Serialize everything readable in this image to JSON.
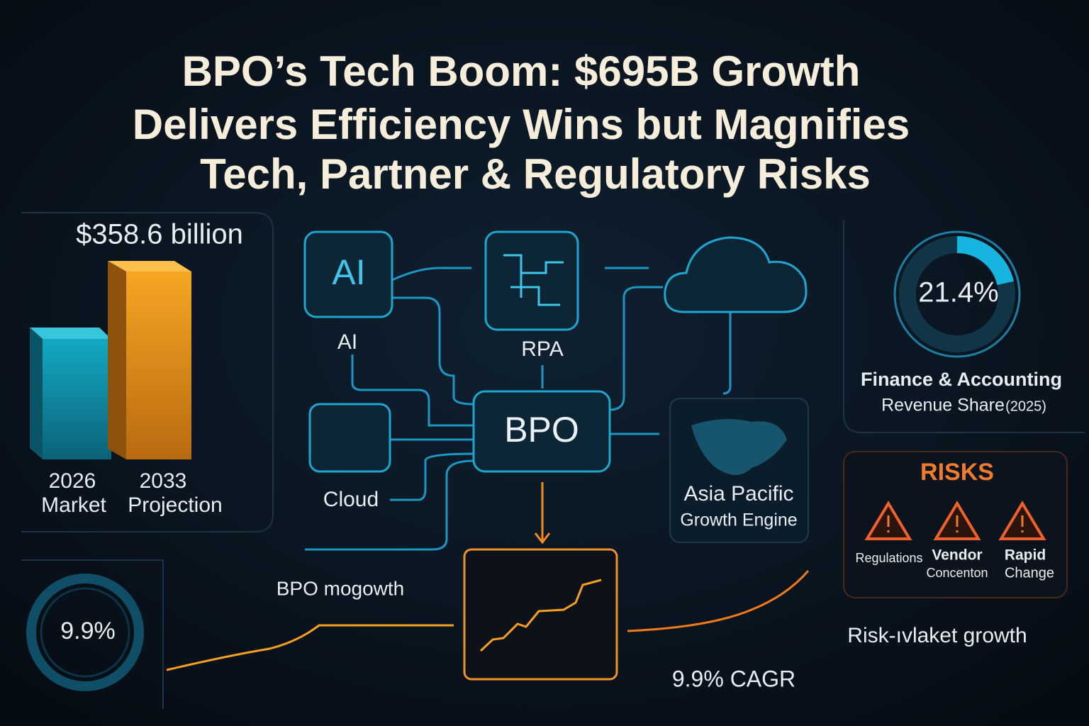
{
  "header": {
    "title_lines": [
      "BPO’s Tech Boom: $695B Growth",
      "Delivers Efficiency Wins but Magnifies",
      "Tech, Partner & Regulatory Risks"
    ]
  },
  "market": {
    "amount": "$358.6 billion",
    "bars": [
      {
        "year": "2026",
        "label": "Market"
      },
      {
        "year": "2033",
        "label": "Projection"
      }
    ]
  },
  "flow": {
    "ai_icon": "AI",
    "ai": "AI",
    "rpa": "RPA",
    "cloud": "Cloud",
    "bpo": "BPO",
    "asia": [
      "Asia Pacific",
      "Growth Engine"
    ]
  },
  "share": {
    "value": 21.4,
    "label": "21.4%",
    "caption": [
      "Finance & Accounting",
      "Revenue Share",
      "(2025)"
    ]
  },
  "risks": {
    "title": "RISKS",
    "items": [
      [
        "Regulations"
      ],
      [
        "Vendor",
        "Concenton"
      ],
      [
        "Rapid",
        "Change"
      ]
    ]
  },
  "growth": {
    "ring": "9.9%",
    "title": "BPO mogowth",
    "cagr": "9.9% CAGR",
    "risk_caption": "Risk-ıvlaket growth"
  }
}
